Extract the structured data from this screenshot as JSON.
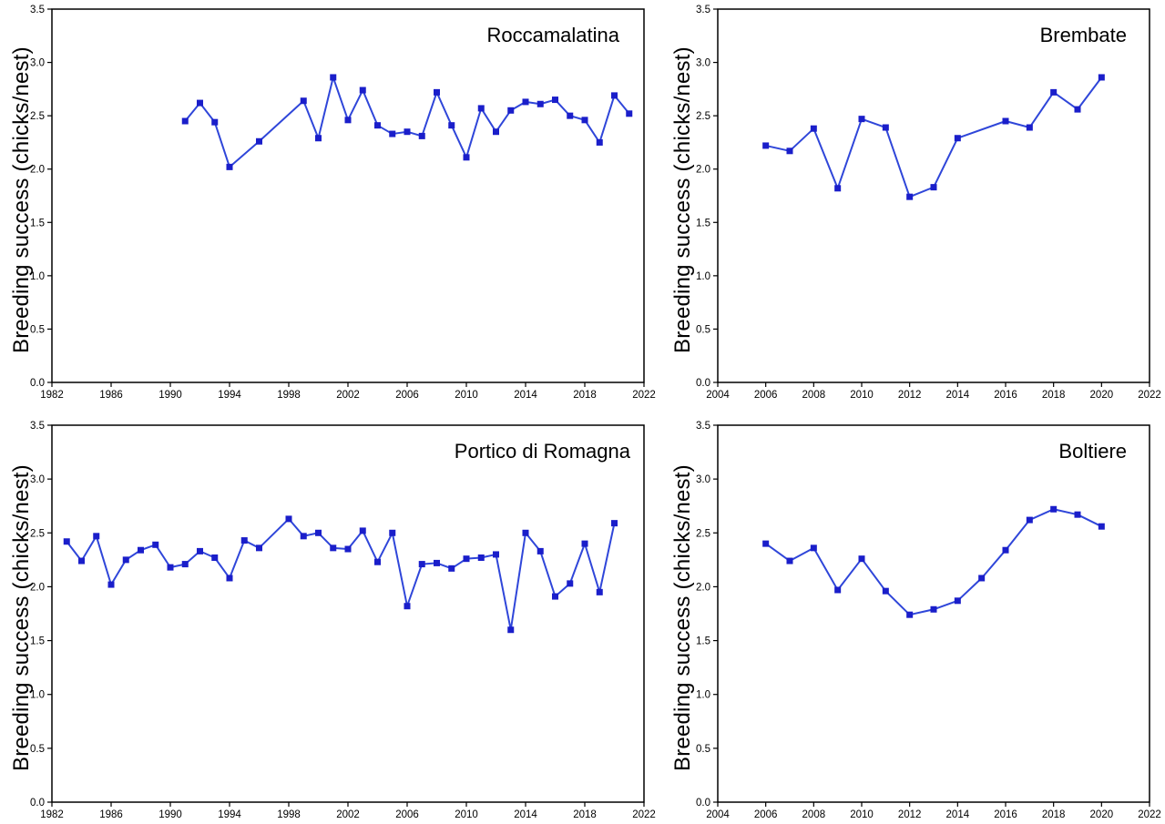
{
  "figure": {
    "y_axis_label": "Breeding success (chicks/nest)",
    "line_color": "#2f46d9",
    "marker_color": "#1a1eca",
    "axis_color": "#000000",
    "background": "#ffffff"
  },
  "chart_data": [
    {
      "type": "line",
      "title": "Roccamalatina",
      "ylabel": "Breeding success (chicks/nest)",
      "xlabel": "",
      "legend": "none",
      "grid": false,
      "marker": "square",
      "xlim": [
        1982,
        2022
      ],
      "ylim": [
        0.0,
        3.5
      ],
      "xticks": [
        1982,
        1986,
        1990,
        1994,
        1998,
        2002,
        2006,
        2010,
        2014,
        2018,
        2022
      ],
      "yticks": [
        "0.0",
        "0.5",
        "1.0",
        "1.5",
        "2.0",
        "2.5",
        "3.0",
        "3.5"
      ],
      "x": [
        1991,
        1992,
        1993,
        1994,
        1996,
        1999,
        2000,
        2001,
        2002,
        2003,
        2004,
        2005,
        2006,
        2007,
        2008,
        2009,
        2010,
        2011,
        2012,
        2013,
        2014,
        2015,
        2016,
        2017,
        2018,
        2019,
        2020,
        2021
      ],
      "y": [
        2.45,
        2.62,
        2.44,
        2.02,
        2.26,
        2.64,
        2.29,
        2.86,
        2.46,
        2.74,
        2.41,
        2.33,
        2.35,
        2.31,
        2.72,
        2.41,
        2.11,
        2.57,
        2.35,
        2.55,
        2.63,
        2.61,
        2.65,
        2.5,
        2.46,
        2.25,
        2.69,
        2.52
      ]
    },
    {
      "type": "line",
      "title": "Brembate",
      "ylabel": "Breeding success (chicks/nest)",
      "xlabel": "",
      "legend": "none",
      "grid": false,
      "marker": "square",
      "xlim": [
        2004,
        2022
      ],
      "ylim": [
        0.0,
        3.5
      ],
      "xticks": [
        2004,
        2006,
        2008,
        2010,
        2012,
        2014,
        2016,
        2018,
        2020,
        2022
      ],
      "yticks": [
        "0.0",
        "0.5",
        "1.0",
        "1.5",
        "2.0",
        "2.5",
        "3.0",
        "3.5"
      ],
      "x": [
        2006,
        2007,
        2008,
        2009,
        2010,
        2011,
        2012,
        2013,
        2014,
        2016,
        2017,
        2018,
        2019,
        2020
      ],
      "y": [
        2.22,
        2.17,
        2.38,
        1.82,
        2.47,
        2.39,
        1.74,
        1.83,
        2.29,
        2.45,
        2.39,
        2.72,
        2.56,
        2.86
      ]
    },
    {
      "type": "line",
      "title": "Portico di Romagna",
      "ylabel": "Breeding success (chicks/nest)",
      "xlabel": "",
      "legend": "none",
      "grid": false,
      "marker": "square",
      "xlim": [
        1982,
        2022
      ],
      "ylim": [
        0.0,
        3.5
      ],
      "xticks": [
        1982,
        1986,
        1990,
        1994,
        1998,
        2002,
        2006,
        2010,
        2014,
        2018,
        2022
      ],
      "yticks": [
        "0.0",
        "0.5",
        "1.0",
        "1.5",
        "2.0",
        "2.5",
        "3.0",
        "3.5"
      ],
      "x": [
        1983,
        1984,
        1985,
        1986,
        1987,
        1988,
        1989,
        1990,
        1991,
        1992,
        1993,
        1994,
        1995,
        1996,
        1998,
        1999,
        2000,
        2001,
        2002,
        2003,
        2004,
        2005,
        2006,
        2007,
        2008,
        2009,
        2010,
        2011,
        2012,
        2013,
        2014,
        2015,
        2016,
        2017,
        2018,
        2019,
        2020
      ],
      "y": [
        2.42,
        2.24,
        2.47,
        2.02,
        2.25,
        2.34,
        2.39,
        2.18,
        2.21,
        2.33,
        2.27,
        2.08,
        2.43,
        2.36,
        2.63,
        2.47,
        2.5,
        2.36,
        2.35,
        2.52,
        2.23,
        2.5,
        1.82,
        2.21,
        2.22,
        2.17,
        2.26,
        2.27,
        2.3,
        1.6,
        2.5,
        2.33,
        1.91,
        2.03,
        2.4,
        1.95,
        2.59
      ]
    },
    {
      "type": "line",
      "title": "Boltiere",
      "ylabel": "Breeding success (chicks/nest)",
      "xlabel": "",
      "legend": "none",
      "grid": false,
      "marker": "square",
      "xlim": [
        2004,
        2022
      ],
      "ylim": [
        0.0,
        3.5
      ],
      "xticks": [
        2004,
        2006,
        2008,
        2010,
        2012,
        2014,
        2016,
        2018,
        2020,
        2022
      ],
      "yticks": [
        "0.0",
        "0.5",
        "1.0",
        "1.5",
        "2.0",
        "2.5",
        "3.0",
        "3.5"
      ],
      "x": [
        2006,
        2007,
        2008,
        2009,
        2010,
        2011,
        2012,
        2013,
        2014,
        2015,
        2016,
        2017,
        2018,
        2019,
        2020
      ],
      "y": [
        2.4,
        2.24,
        2.36,
        1.97,
        2.26,
        1.96,
        1.74,
        1.79,
        1.87,
        2.08,
        2.34,
        2.62,
        2.72,
        2.67,
        2.56
      ]
    }
  ]
}
